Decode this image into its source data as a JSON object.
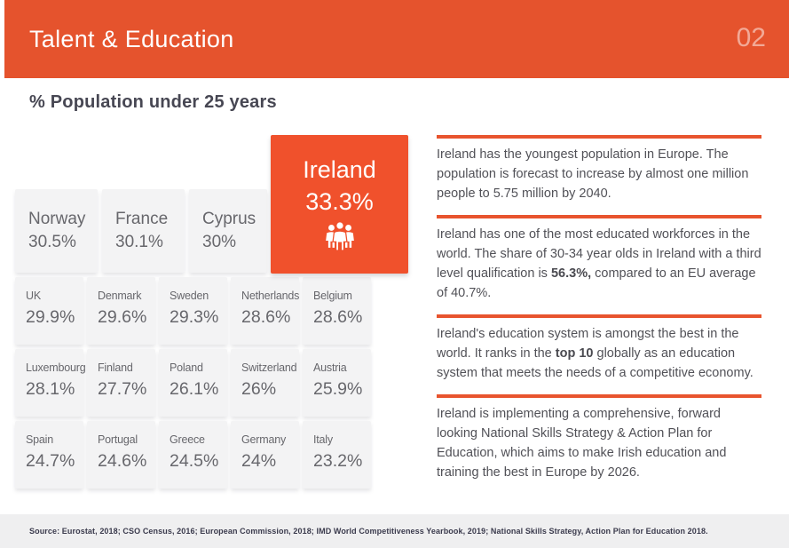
{
  "header": {
    "title": "Talent & Education",
    "page_number": "02"
  },
  "section": {
    "title": "% Population under 25 years"
  },
  "highlight": {
    "country": "Ireland",
    "value": "33.3%",
    "icon": "people-group-icon"
  },
  "top_tiles": [
    {
      "country": "Norway",
      "value": "30.5%"
    },
    {
      "country": "France",
      "value": "30.1%"
    },
    {
      "country": "Cyprus",
      "value": "30%"
    }
  ],
  "grid_rows": [
    [
      {
        "country": "UK",
        "value": "29.9%"
      },
      {
        "country": "Denmark",
        "value": "29.6%"
      },
      {
        "country": "Sweden",
        "value": "29.3%"
      },
      {
        "country": "Netherlands",
        "value": "28.6%"
      },
      {
        "country": "Belgium",
        "value": "28.6%"
      }
    ],
    [
      {
        "country": "Luxembourg",
        "value": "28.1%"
      },
      {
        "country": "Finland",
        "value": "27.7%"
      },
      {
        "country": "Poland",
        "value": "26.1%"
      },
      {
        "country": "Switzerland",
        "value": "26%"
      },
      {
        "country": "Austria",
        "value": "25.9%"
      }
    ],
    [
      {
        "country": "Spain",
        "value": "24.7%"
      },
      {
        "country": "Portugal",
        "value": "24.6%"
      },
      {
        "country": "Greece",
        "value": "24.5%"
      },
      {
        "country": "Germany",
        "value": "24%"
      },
      {
        "country": "Italy",
        "value": "23.2%"
      }
    ]
  ],
  "paragraphs": [
    {
      "segments": [
        {
          "t": "Ireland has the youngest population in Europe. The population is forecast to increase by almost one million people to 5.75 million by 2040.",
          "b": false
        }
      ]
    },
    {
      "segments": [
        {
          "t": "Ireland has one of the most educated workforces in the world. The share of 30-34 year olds in Ireland with a third level qualification is ",
          "b": false
        },
        {
          "t": "56.3%,",
          "b": true
        },
        {
          "t": " compared to an EU average of 40.7%.",
          "b": false
        }
      ]
    },
    {
      "segments": [
        {
          "t": "Ireland's education system is amongst the best in the world. It ranks in the ",
          "b": false
        },
        {
          "t": "top 10",
          "b": true
        },
        {
          "t": " globally as an education system that meets the needs of a competitive economy.",
          "b": false
        }
      ]
    },
    {
      "segments": [
        {
          "t": "Ireland is implementing a comprehensive, forward looking National Skills Strategy & Action Plan for Education, which aims to make Irish education and training the best in Europe by 2026.",
          "b": false
        }
      ]
    }
  ],
  "footer": {
    "source": "Source: Eurostat, 2018; CSO Census, 2016; European Commission, 2018; IMD World Competitiveness Yearbook, 2019; National Skills Strategy, Action Plan for Education 2018."
  },
  "colors": {
    "header_orange": "#E5532D",
    "highlight_orange": "#F0512C",
    "divider_orange": "#E8542E",
    "tile_gray": "#F3F3F4",
    "tile_text": "#67676C",
    "body_text": "#515157",
    "footer_gray": "#EFEFF0",
    "source_text": "#3B3B4D"
  },
  "chart_data": {
    "type": "bar",
    "title": "% Population under 25 years",
    "categories": [
      "Ireland",
      "Norway",
      "France",
      "Cyprus",
      "UK",
      "Denmark",
      "Sweden",
      "Netherlands",
      "Belgium",
      "Luxembourg",
      "Finland",
      "Poland",
      "Switzerland",
      "Austria",
      "Spain",
      "Portugal",
      "Greece",
      "Germany",
      "Italy"
    ],
    "values": [
      33.3,
      30.5,
      30.1,
      30,
      29.9,
      29.6,
      29.3,
      28.6,
      28.6,
      28.1,
      27.7,
      26.1,
      26,
      25.9,
      24.7,
      24.6,
      24.5,
      24,
      23.2
    ],
    "unit": "%",
    "highlighted_category": "Ireland",
    "layout": "tile-grid"
  }
}
